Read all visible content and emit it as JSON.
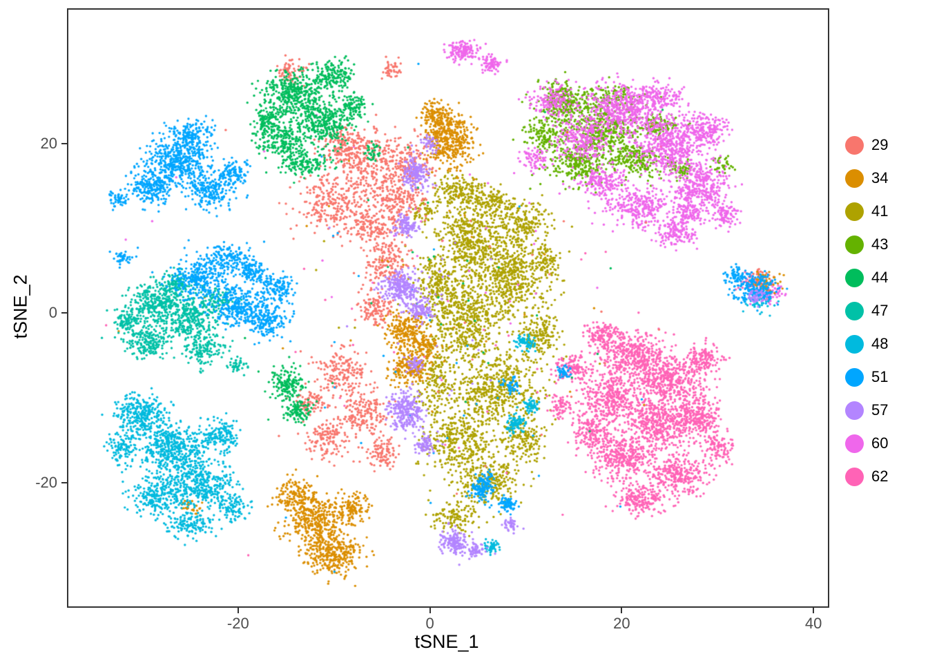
{
  "figure": {
    "background": "#ffffff",
    "panel_border_color": "#333333",
    "tick_color": "#333333",
    "tick_label_color": "#4d4d4d"
  },
  "chart_data": {
    "type": "scatter",
    "title": "",
    "xlabel": "tSNE_1",
    "ylabel": "tSNE_2",
    "xlim": [
      -37.7,
      41.5
    ],
    "ylim": [
      -34.6,
      35.8
    ],
    "x_ticks": [
      -20,
      0,
      20,
      40
    ],
    "y_ticks": [
      -20,
      0,
      20
    ],
    "grid": false,
    "legend_position": "right",
    "point_radius_px": 1.7,
    "blob_format": "[center_x, center_y, radius_x, radius_y, n_points] in data coordinates",
    "draw_order": [
      "41",
      "43",
      "60",
      "62",
      "29",
      "34",
      "44",
      "47",
      "48",
      "51",
      "57"
    ],
    "clusters": [
      {
        "label": "29",
        "color": "#F8766D",
        "blobs": [
          [
            -10,
            13,
            4,
            3.5,
            260
          ],
          [
            -5.5,
            17,
            3.5,
            4,
            300
          ],
          [
            -8.5,
            19.5,
            3,
            2.5,
            200
          ],
          [
            -3,
            13,
            2.5,
            2.5,
            150
          ],
          [
            -6,
            10,
            3,
            2,
            150
          ],
          [
            -1.5,
            18,
            2,
            3,
            120
          ],
          [
            -14.5,
            28.5,
            1.6,
            1.6,
            70
          ],
          [
            -4,
            28.8,
            1.2,
            1,
            45
          ],
          [
            -4.5,
            6,
            2.2,
            2.8,
            160
          ],
          [
            -5.5,
            0.5,
            1.8,
            2.2,
            120
          ],
          [
            -9,
            -7,
            2.6,
            2.6,
            170
          ],
          [
            -7,
            -12,
            2.6,
            3,
            190
          ],
          [
            -10.5,
            -15,
            2.2,
            2.2,
            130
          ],
          [
            -5,
            -16.5,
            1.8,
            1.8,
            90
          ],
          [
            -12.5,
            -10.5,
            1.6,
            1.6,
            80
          ],
          [
            34.5,
            4.5,
            1,
            0.8,
            30
          ],
          [
            0,
            0,
            26,
            24,
            30
          ]
        ]
      },
      {
        "label": "34",
        "color": "#DB8E00",
        "blobs": [
          [
            2,
            20.5,
            2.4,
            3.2,
            420
          ],
          [
            0.5,
            23.5,
            1.5,
            1.5,
            100
          ],
          [
            -2.5,
            -2,
            2,
            2.4,
            220
          ],
          [
            -2,
            -6.5,
            2,
            2,
            180
          ],
          [
            -0.5,
            -4,
            1.5,
            1.5,
            100
          ],
          [
            -12,
            -24.5,
            3,
            3,
            380
          ],
          [
            -10,
            -28.5,
            2.8,
            2.4,
            300
          ],
          [
            -14,
            -21.5,
            2,
            2,
            140
          ],
          [
            -8,
            -23,
            1.8,
            1.8,
            120
          ],
          [
            35,
            3.5,
            1.6,
            1.2,
            60
          ],
          [
            -25,
            -23,
            1.2,
            1,
            25
          ],
          [
            0,
            0,
            26,
            24,
            30
          ]
        ]
      },
      {
        "label": "41",
        "color": "#AEA200",
        "blobs": [
          [
            4,
            9,
            3.5,
            4,
            420
          ],
          [
            8,
            4,
            4.5,
            5,
            600
          ],
          [
            3.5,
            -1,
            3.5,
            4.5,
            450
          ],
          [
            7,
            -9,
            4.5,
            4.5,
            520
          ],
          [
            3,
            -15,
            3.5,
            3.5,
            330
          ],
          [
            6,
            -20,
            3.5,
            2.8,
            260
          ],
          [
            9.5,
            10.5,
            2.8,
            2.6,
            220
          ],
          [
            1,
            3.5,
            2.5,
            3.5,
            220
          ],
          [
            0.5,
            -8,
            2,
            3.5,
            160
          ],
          [
            11.5,
            -3,
            2,
            3.5,
            170
          ],
          [
            3,
            14.5,
            2.6,
            2,
            170
          ],
          [
            10,
            -15,
            2.5,
            2.5,
            150
          ],
          [
            2.5,
            -24,
            2.5,
            1.8,
            120
          ],
          [
            6.5,
            13,
            2,
            1.5,
            100
          ],
          [
            12,
            6,
            1.5,
            2,
            80
          ],
          [
            -0.5,
            12,
            1.5,
            1.5,
            60
          ],
          [
            2,
            -2,
            13,
            18,
            40
          ]
        ]
      },
      {
        "label": "43",
        "color": "#64B200",
        "blobs": [
          [
            14,
            25,
            2.8,
            2.4,
            280
          ],
          [
            18,
            21.5,
            3.5,
            2.6,
            380
          ],
          [
            15.5,
            17.5,
            2.8,
            2.2,
            240
          ],
          [
            21.5,
            18,
            2.6,
            2,
            180
          ],
          [
            12,
            21,
            2,
            2,
            140
          ],
          [
            24,
            22,
            2,
            1.5,
            100
          ],
          [
            19,
            25.5,
            2.5,
            1.5,
            120
          ],
          [
            26,
            17,
            1.5,
            1.2,
            60
          ],
          [
            30.5,
            17.5,
            1,
            1,
            35
          ],
          [
            18,
            20,
            8,
            6,
            40
          ]
        ]
      },
      {
        "label": "44",
        "color": "#00BD5C",
        "blobs": [
          [
            -14,
            26,
            3,
            2.6,
            380
          ],
          [
            -11,
            22.5,
            2.8,
            2.6,
            320
          ],
          [
            -15.5,
            20.5,
            2.4,
            2.2,
            220
          ],
          [
            -10,
            28,
            2,
            1.8,
            160
          ],
          [
            -13,
            17.5,
            2.8,
            1.4,
            140
          ],
          [
            -17,
            23,
            1.5,
            1.8,
            110
          ],
          [
            -8,
            24.5,
            1.5,
            1.5,
            90
          ],
          [
            -15,
            -8.5,
            1.7,
            1.9,
            160
          ],
          [
            -13.8,
            -11.5,
            1.4,
            1.4,
            100
          ],
          [
            -6,
            19,
            1,
            1,
            35
          ],
          [
            0,
            5,
            25,
            20,
            30
          ]
        ]
      },
      {
        "label": "47",
        "color": "#00C1A7",
        "blobs": [
          [
            -28.5,
            1,
            2.8,
            2.4,
            300
          ],
          [
            -25,
            -0.5,
            2.8,
            2.4,
            280
          ],
          [
            -29.5,
            -3.5,
            2.4,
            2,
            200
          ],
          [
            -23.5,
            -4,
            2,
            2,
            150
          ],
          [
            -26.5,
            3.5,
            2,
            1.5,
            120
          ],
          [
            -31.5,
            -1,
            1.5,
            1.5,
            90
          ],
          [
            -22,
            1.5,
            1.5,
            1.5,
            90
          ],
          [
            -20,
            -6,
            1,
            1,
            40
          ],
          [
            -26,
            0,
            5,
            4,
            30
          ]
        ]
      },
      {
        "label": "48",
        "color": "#00BADE",
        "blobs": [
          [
            -30,
            -12,
            2.8,
            2.4,
            300
          ],
          [
            -27,
            -16,
            3.2,
            2.8,
            420
          ],
          [
            -24,
            -20,
            3.2,
            2.8,
            380
          ],
          [
            -28.5,
            -21.5,
            2.4,
            2.4,
            220
          ],
          [
            -22,
            -14.5,
            2,
            2,
            160
          ],
          [
            -25,
            -25,
            2.4,
            1.6,
            140
          ],
          [
            -32,
            -16,
            1.5,
            2,
            110
          ],
          [
            -20.5,
            -23,
            1.6,
            1.6,
            90
          ],
          [
            9,
            -13,
            1,
            1.2,
            90
          ],
          [
            10.5,
            -11,
            0.8,
            0.8,
            50
          ],
          [
            10,
            -3.5,
            1,
            1,
            70
          ],
          [
            34.5,
            1.5,
            1.6,
            1.2,
            60
          ],
          [
            6.5,
            -27.5,
            0.9,
            0.9,
            45
          ],
          [
            -26,
            -17,
            6,
            6,
            30
          ]
        ]
      },
      {
        "label": "51",
        "color": "#00A6FF",
        "blobs": [
          [
            -26,
            18,
            3.2,
            2.8,
            420
          ],
          [
            -29,
            15,
            2.4,
            2.2,
            240
          ],
          [
            -23,
            14.5,
            2.4,
            2,
            200
          ],
          [
            -25,
            21,
            2,
            1.6,
            150
          ],
          [
            -20.5,
            16.5,
            1.6,
            1.6,
            110
          ],
          [
            -32.5,
            13.5,
            1,
            1,
            50
          ],
          [
            -24,
            4,
            2.8,
            2.4,
            300
          ],
          [
            -20,
            1,
            2.8,
            2.4,
            280
          ],
          [
            -17,
            -1,
            2.2,
            2,
            180
          ],
          [
            -21,
            6.5,
            2,
            1.6,
            140
          ],
          [
            -16,
            3,
            1.8,
            1.8,
            140
          ],
          [
            -18.5,
            5,
            1.5,
            1.5,
            100
          ],
          [
            -32,
            6.5,
            1,
            0.8,
            45
          ],
          [
            5.5,
            -20.5,
            1.3,
            1.5,
            130
          ],
          [
            8,
            -22.5,
            1,
            1,
            70
          ],
          [
            8.5,
            -8.5,
            0.9,
            0.9,
            50
          ],
          [
            34,
            3,
            2.2,
            1.8,
            200
          ],
          [
            32,
            4.5,
            1.2,
            1,
            60
          ],
          [
            14,
            -7,
            0.8,
            0.8,
            35
          ],
          [
            -5,
            0,
            26,
            22,
            35
          ]
        ]
      },
      {
        "label": "57",
        "color": "#B385FF",
        "blobs": [
          [
            -1.5,
            16.5,
            1.4,
            2,
            170
          ],
          [
            -2.5,
            10.5,
            1.2,
            1.4,
            100
          ],
          [
            -3,
            3,
            1.9,
            2,
            240
          ],
          [
            -1,
            0.5,
            1.4,
            1.4,
            110
          ],
          [
            -2.5,
            -11.5,
            1.7,
            2.2,
            260
          ],
          [
            -0.5,
            -15.5,
            1,
            1.2,
            70
          ],
          [
            2.5,
            -27,
            1.4,
            1.4,
            150
          ],
          [
            4.8,
            -28,
            1,
            0.8,
            60
          ],
          [
            8.5,
            -25,
            0.8,
            0.8,
            40
          ],
          [
            0,
            20,
            0.8,
            1,
            40
          ],
          [
            34,
            2,
            1.2,
            1,
            40
          ],
          [
            -1.5,
            -6,
            0.9,
            1,
            50
          ],
          [
            0,
            0,
            10,
            16,
            25
          ]
        ]
      },
      {
        "label": "60",
        "color": "#EF67EB",
        "blobs": [
          [
            20,
            24,
            3.6,
            2.8,
            460
          ],
          [
            25,
            20,
            3.8,
            3,
            520
          ],
          [
            28,
            15,
            2.8,
            2.8,
            330
          ],
          [
            22,
            12.5,
            3.4,
            2.2,
            280
          ],
          [
            16,
            20.5,
            2.8,
            2.6,
            260
          ],
          [
            13,
            25,
            2.4,
            2,
            170
          ],
          [
            29,
            21.5,
            2.2,
            1.8,
            160
          ],
          [
            18,
            15.5,
            2.6,
            1.8,
            180
          ],
          [
            25.5,
            9.5,
            2.2,
            1.4,
            130
          ],
          [
            31,
            11.5,
            1.4,
            1.4,
            90
          ],
          [
            24,
            25.5,
            2.6,
            1.6,
            150
          ],
          [
            27,
            12,
            2,
            1.5,
            110
          ],
          [
            3.5,
            31,
            1.5,
            1.3,
            140
          ],
          [
            6.5,
            29.5,
            1.2,
            1,
            70
          ],
          [
            35.5,
            2.5,
            1.5,
            1.2,
            70
          ],
          [
            11,
            18,
            1.5,
            1.5,
            70
          ],
          [
            0,
            10,
            26,
            16,
            35
          ]
        ]
      },
      {
        "label": "62",
        "color": "#FF63B6",
        "blobs": [
          [
            21,
            -5,
            3.6,
            2.8,
            420
          ],
          [
            25,
            -8,
            3.6,
            2.8,
            420
          ],
          [
            19,
            -10,
            3.2,
            2.8,
            340
          ],
          [
            24,
            -13,
            3.6,
            3,
            460
          ],
          [
            20,
            -17,
            3.2,
            2.6,
            340
          ],
          [
            26,
            -19,
            3,
            2.4,
            280
          ],
          [
            22,
            -22,
            2.8,
            1.8,
            200
          ],
          [
            17,
            -14,
            2,
            2.6,
            180
          ],
          [
            28,
            -12,
            2.4,
            2.6,
            240
          ],
          [
            15,
            -6.5,
            1.8,
            1.8,
            130
          ],
          [
            28.5,
            -5.5,
            1.8,
            1.8,
            130
          ],
          [
            18,
            -2.5,
            2,
            1.4,
            120
          ],
          [
            30,
            -16,
            1.5,
            1.8,
            100
          ],
          [
            13.5,
            -11,
            1.2,
            1.5,
            70
          ],
          [
            33.5,
            3.5,
            1.2,
            1,
            50
          ],
          [
            0,
            0,
            28,
            24,
            35
          ]
        ]
      }
    ]
  }
}
